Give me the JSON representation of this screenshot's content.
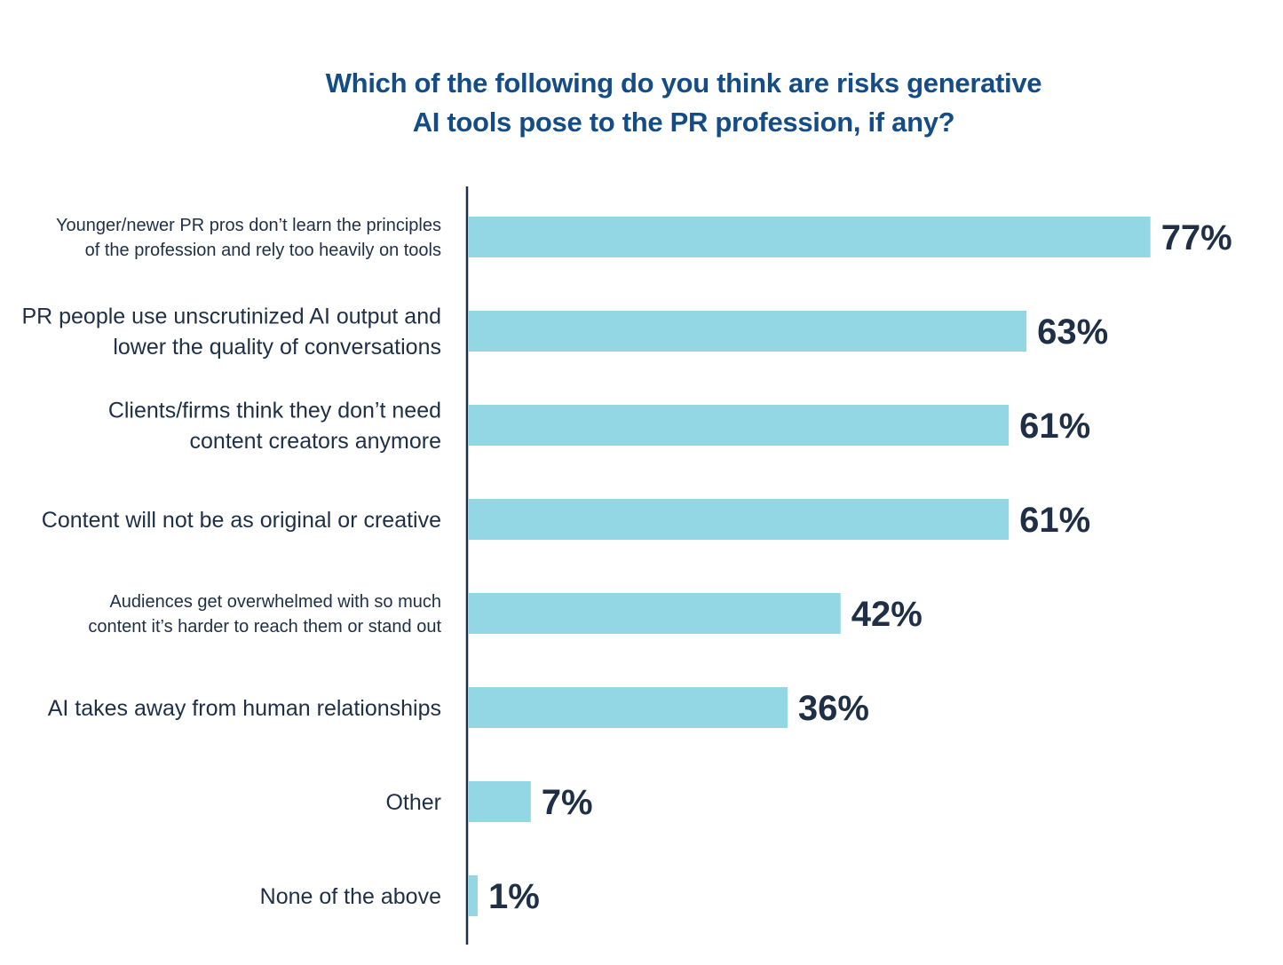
{
  "chart_data": {
    "type": "bar",
    "orientation": "horizontal",
    "title_lines": [
      "Which of the following do you think are risks generative",
      "AI tools pose to the PR profession, if any?"
    ],
    "categories": [
      [
        "Younger/newer PR pros don’t learn the principles",
        "of the profession and rely too heavily on tools"
      ],
      [
        "PR people use unscrutinized AI output and",
        "lower the quality of conversations"
      ],
      [
        "Clients/firms think they don’t need",
        "content creators anymore"
      ],
      [
        "Content will not be as original or creative"
      ],
      [
        "Audiences get overwhelmed with so much",
        "content it’s harder to reach them or stand out"
      ],
      [
        "AI takes away from human relationships"
      ],
      [
        "Other"
      ],
      [
        "None of the above"
      ]
    ],
    "values": [
      77,
      63,
      61,
      61,
      42,
      36,
      7,
      1
    ],
    "value_labels": [
      "77%",
      "63%",
      "61%",
      "61%",
      "42%",
      "36%",
      "7%",
      "1%"
    ],
    "xlim": [
      0,
      100
    ],
    "grid": false,
    "legend": "none",
    "colors": {
      "bar": "#92d7e3",
      "axis": "#1f2f45",
      "title": "#134c86",
      "text": "#1f2f45"
    }
  }
}
